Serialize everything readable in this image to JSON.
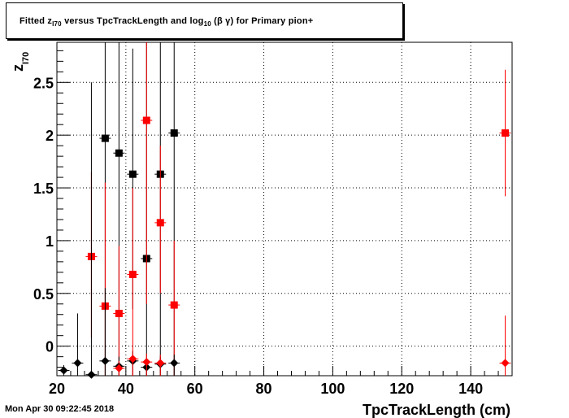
{
  "title": {
    "prefix": "Fitted  z",
    "sub1": "I70",
    "mid": "  versus TpcTrackLength and log",
    "sub2": "10",
    "suffix": " (β γ) for Primary pion+"
  },
  "timestamp": "Mon Apr 30 09:22:45 2018",
  "chart_data": {
    "type": "scatter",
    "title": "Fitted z_I70 versus TpcTrackLength and log10(βγ) for Primary pion+",
    "xlabel": "TpcTrackLength (cm)",
    "ylabel": "z",
    "ylabel_sub": "I70",
    "xlim": [
      20,
      152
    ],
    "ylim": [
      -0.28,
      2.88
    ],
    "xticks": [
      20,
      40,
      60,
      80,
      100,
      120,
      140
    ],
    "yticks": [
      0,
      0.5,
      1,
      1.5,
      2,
      2.5
    ],
    "ytick_labels": [
      "0",
      "0.5",
      "1",
      "1.5",
      "2",
      "2.5"
    ],
    "grid": true,
    "series": [
      {
        "marker": "square",
        "color": "#000000",
        "points": [
          {
            "x": 34,
            "y": 1.97,
            "ylo": -0.28,
            "yhi": 2.88
          },
          {
            "x": 38,
            "y": 1.83,
            "ylo": -0.28,
            "yhi": 2.88
          },
          {
            "x": 42,
            "y": 1.63,
            "ylo": 0.35,
            "yhi": 2.82
          },
          {
            "x": 46,
            "y": 0.83,
            "ylo": -0.28,
            "yhi": 2.88
          },
          {
            "x": 50,
            "y": 1.63,
            "ylo": -0.28,
            "yhi": 2.88
          },
          {
            "x": 54,
            "y": 2.02,
            "ylo": -0.28,
            "yhi": 2.88
          }
        ]
      },
      {
        "marker": "square",
        "color": "#ff0000",
        "points": [
          {
            "x": 30,
            "y": 0.85,
            "ylo": 0.08,
            "yhi": 1.65
          },
          {
            "x": 34,
            "y": 0.38,
            "ylo": -0.28,
            "yhi": 1.55
          },
          {
            "x": 38,
            "y": 0.31,
            "ylo": -0.28,
            "yhi": 0.95
          },
          {
            "x": 42,
            "y": 0.68,
            "ylo": -0.28,
            "yhi": 1.5
          },
          {
            "x": 46,
            "y": 2.14,
            "ylo": 0.4,
            "yhi": 2.88
          },
          {
            "x": 50,
            "y": 1.17,
            "ylo": 0.5,
            "yhi": 1.9
          },
          {
            "x": 54,
            "y": 0.39,
            "ylo": -0.28,
            "yhi": 1.0
          },
          {
            "x": 150,
            "y": 2.02,
            "ylo": 1.42,
            "yhi": 2.62
          }
        ]
      },
      {
        "marker": "diamond",
        "color": "#000000",
        "points": [
          {
            "x": 22,
            "y": -0.23,
            "ylo": -0.28,
            "yhi": -0.18
          },
          {
            "x": 26,
            "y": -0.16,
            "ylo": -0.28,
            "yhi": 0.31
          },
          {
            "x": 30,
            "y": -0.27,
            "ylo": -0.28,
            "yhi": 2.5
          },
          {
            "x": 34,
            "y": -0.14,
            "ylo": -0.28,
            "yhi": 0.55
          },
          {
            "x": 38,
            "y": -0.19,
            "ylo": -0.28,
            "yhi": -0.1
          },
          {
            "x": 42,
            "y": -0.14,
            "ylo": -0.28,
            "yhi": -0.05
          },
          {
            "x": 46,
            "y": -0.2,
            "ylo": -0.28,
            "yhi": -0.12
          },
          {
            "x": 50,
            "y": -0.17,
            "ylo": -0.28,
            "yhi": -0.1
          },
          {
            "x": 54,
            "y": -0.16,
            "ylo": -0.28,
            "yhi": -0.08
          }
        ]
      },
      {
        "marker": "diamond",
        "color": "#ff0000",
        "points": [
          {
            "x": 38,
            "y": -0.21,
            "ylo": -0.28,
            "yhi": -0.14
          },
          {
            "x": 42,
            "y": -0.12,
            "ylo": -0.28,
            "yhi": -0.04
          },
          {
            "x": 46,
            "y": -0.15,
            "ylo": -0.28,
            "yhi": -0.07
          },
          {
            "x": 50,
            "y": -0.16,
            "ylo": -0.28,
            "yhi": -0.08
          },
          {
            "x": 150,
            "y": -0.16,
            "ylo": -0.28,
            "yhi": 0.29
          }
        ]
      }
    ]
  }
}
